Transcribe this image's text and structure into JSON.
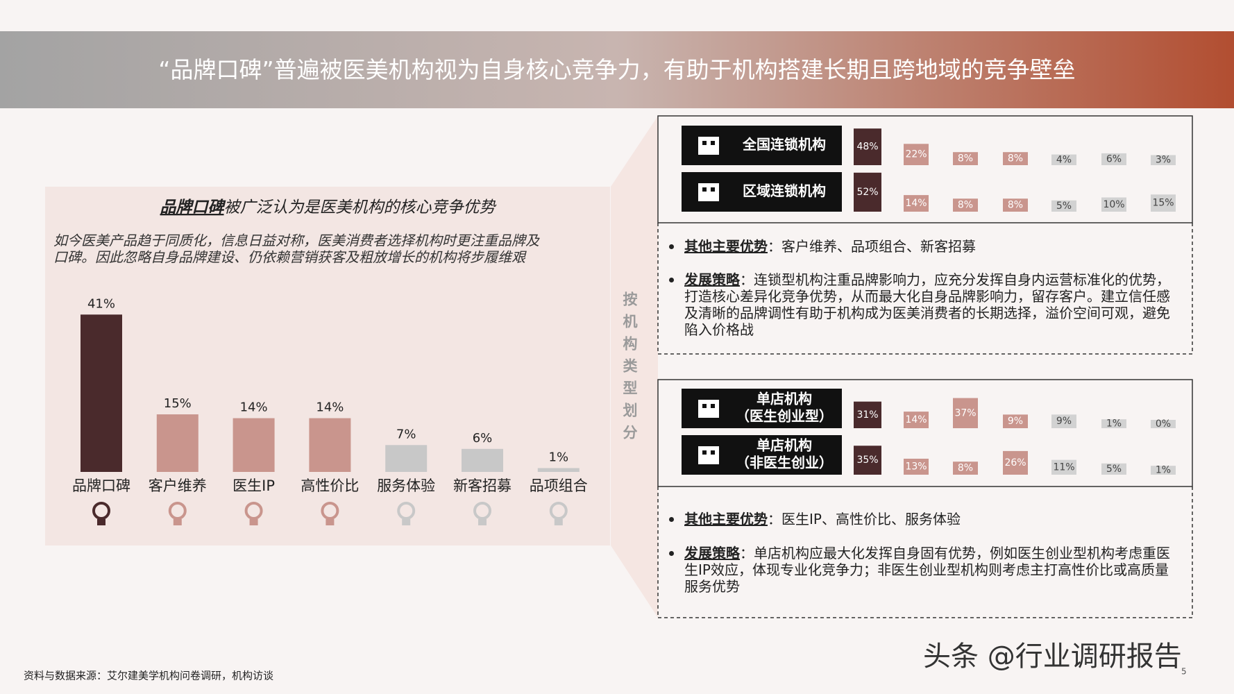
{
  "header": {
    "title": "“品牌口碑”普遍被医美机构视为自身核心竞争力，有助于机构搭建长期且跨地域的竞争壁垒"
  },
  "chart_data": [
    {
      "type": "bar",
      "title_emphasis": "品牌口碑",
      "title": "被广泛认为是医美机构的核心竞争优势",
      "subtitle": [
        "如今医美产品趋于同质化，信息日益对称，医美消费者选择机构时更注重品牌及",
        "口碑。因此忽略自身品牌建设、仍依赖营销获客及粗放增长的机构将步履维艰"
      ],
      "categories": [
        "品牌口碑",
        "客户维养",
        "医生IP",
        "高性价比",
        "服务体验",
        "新客招募",
        "品项组合"
      ],
      "values": [
        41,
        15,
        14,
        14,
        7,
        6,
        1
      ],
      "value_labels": [
        "41%",
        "15%",
        "14%",
        "14%",
        "7%",
        "6%",
        "1%"
      ],
      "colors": [
        "#4a2a2c",
        "#c9958d",
        "#c9958d",
        "#c9958d",
        "#c8c8c8",
        "#c8c8c8",
        "#c8c8c8"
      ]
    },
    {
      "type": "tile",
      "colors": [
        "#4a2a2c",
        "#c9958d",
        "#c9958d",
        "#c9958d",
        "#d2d2d2",
        "#d2d2d2",
        "#d2d2d2"
      ],
      "value_label_colors": [
        "#ffffff",
        "#ffffff",
        "#ffffff",
        "#ffffff",
        "#444444",
        "#444444",
        "#444444"
      ],
      "series": [
        {
          "name_lines": [
            "全国连锁机构"
          ],
          "values": [
            48,
            22,
            8,
            8,
            4,
            6,
            3
          ],
          "value_labels": [
            "48%",
            "22%",
            "8%",
            "8%",
            "4%",
            "6%",
            "3%"
          ]
        },
        {
          "name_lines": [
            "区域连锁机构"
          ],
          "values": [
            52,
            14,
            8,
            8,
            5,
            10,
            15
          ],
          "value_labels": [
            "52%",
            "14%",
            "8%",
            "8%",
            "5%",
            "10%",
            "15%"
          ]
        }
      ]
    },
    {
      "type": "tile",
      "colors": [
        "#4a2a2c",
        "#c9958d",
        "#c9958d",
        "#c9958d",
        "#d2d2d2",
        "#d2d2d2",
        "#d2d2d2"
      ],
      "value_label_colors": [
        "#ffffff",
        "#ffffff",
        "#ffffff",
        "#ffffff",
        "#444444",
        "#444444",
        "#444444"
      ],
      "series": [
        {
          "name_lines": [
            "单店机构",
            "（医生创业型）"
          ],
          "values": [
            31,
            14,
            37,
            9,
            9,
            1,
            0
          ],
          "value_labels": [
            "31%",
            "14%",
            "37%",
            "9%",
            "9%",
            "1%",
            "0%"
          ]
        },
        {
          "name_lines": [
            "单店机构",
            "（非医生创业）"
          ],
          "values": [
            35,
            13,
            8,
            26,
            11,
            5,
            1
          ],
          "value_labels": [
            "35%",
            "13%",
            "8%",
            "26%",
            "11%",
            "5%",
            "1%"
          ]
        }
      ]
    }
  ],
  "side_label": "按机构类型划分",
  "panels": [
    {
      "other_label": "其他主要优势",
      "other_text": "：客户维养、品项组合、新客招募",
      "strategy_label": "发展策略",
      "strategy_text": "：连锁型机构注重品牌影响力，应充分发挥自身内运营标准化的优势，打造核心差异化竞争优势，从而最大化自身品牌影响力，留存客户。建立信任感及清晰的品牌调性有助于机构成为医美消费者的长期选择，溢价空间可观，避免陷入价格战"
    },
    {
      "other_label": "其他主要优势",
      "other_text": "：医生IP、高性价比、服务体验",
      "strategy_label": "发展策略",
      "strategy_text": "：单店机构应最大化发挥自身固有优势，例如医生创业型机构考虑重医生IP效应，体现专业化竞争力；非医生创业型机构则考虑主打高性价比或高质量服务优势"
    }
  ],
  "source": "资料与数据来源：艾尔建美学机构问卷调研，机构访谈",
  "watermark": "头条 @行业调研报告",
  "page_number": "5"
}
